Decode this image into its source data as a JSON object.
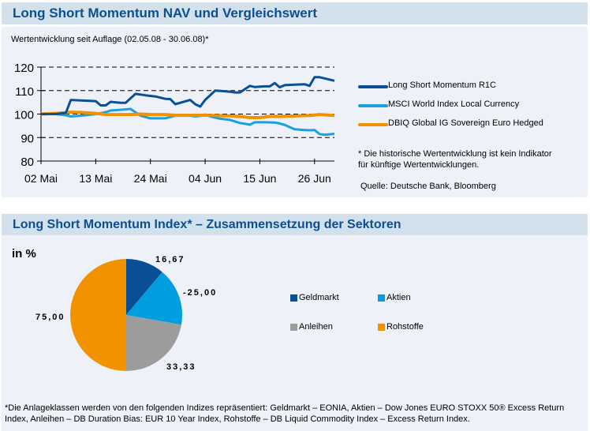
{
  "section1": {
    "title": "Long Short Momentum NAV und Vergleichswert",
    "subtitle": "Wertentwicklung seit Auflage (02.05.08 - 30.06.08)*",
    "note_line1": "* Die historische Wertentwicklung ist kein Indikator",
    "note_line2": "für künftige Wertentwicklungen.",
    "source": "Quelle: Deutsche Bank, Bloomberg"
  },
  "section2": {
    "title": "Long Short Momentum Index* – Zusammensetzung der Sektoren",
    "unit_label": "in %",
    "footnote": "*Die Anlageklassen werden von den folgenden Indizes repräsentiert: Geldmarkt – EONIA, Aktien – Dow Jones EURO STOXX 50® Excess Return Index, Anleihen – DB Duration Bias: EUR 10 Year Index, Rohstoffe – DB Liquid Commodity Index – Excess Return Index."
  },
  "chart_data": [
    {
      "type": "line",
      "title": "Wertentwicklung seit Auflage (02.05.08 - 30.06.08)*",
      "xlabel": "",
      "ylabel": "",
      "ylim": [
        80,
        120
      ],
      "yticks": [
        80,
        90,
        100,
        110,
        120
      ],
      "xlim_days": [
        0,
        59
      ],
      "xtick_labels": [
        "02 Mai",
        "13 Mai",
        "24 Mai",
        "04 Jun",
        "15 Jun",
        "26 Jun"
      ],
      "xtick_days": [
        0,
        11,
        22,
        33,
        44,
        55
      ],
      "grid": "horizontal-dashed",
      "legend": "right",
      "series": [
        {
          "name": "Long Short Momentum R1C",
          "color": "#0b4f96",
          "x_days": [
            0,
            3,
            5,
            6,
            8,
            11,
            12,
            13,
            14,
            16,
            17,
            19,
            21,
            23,
            25,
            26,
            27,
            30,
            31,
            32,
            33,
            35,
            37,
            38,
            39,
            40,
            42,
            43,
            45,
            46,
            47,
            48,
            49,
            51,
            53,
            54,
            55,
            56,
            57,
            59
          ],
          "values": [
            100,
            100,
            100.5,
            106,
            105.8,
            105.5,
            103.7,
            103.7,
            105.2,
            104.8,
            104.8,
            108.6,
            108,
            107.5,
            106.5,
            106.4,
            104.2,
            106,
            104.2,
            103.2,
            106,
            110,
            109.7,
            109.5,
            109.2,
            109.2,
            112,
            111.5,
            111.8,
            111.8,
            113.2,
            111.4,
            112.3,
            112.5,
            112.7,
            112,
            115.7,
            115.7,
            115.2,
            114.2
          ]
        },
        {
          "name": "MSCI World Index Local Currency",
          "color": "#1aa0e0",
          "x_days": [
            0,
            3,
            5,
            6,
            8,
            11,
            13,
            14,
            16,
            18,
            20,
            22,
            23,
            25,
            27,
            30,
            31,
            32,
            33,
            34,
            36,
            38,
            40,
            42,
            43,
            45,
            47,
            48,
            49,
            51,
            53,
            54,
            55,
            56,
            57,
            59
          ],
          "values": [
            100,
            100,
            99.5,
            99,
            99.3,
            100,
            100.8,
            101.5,
            101.8,
            102.2,
            99.3,
            98.2,
            98.2,
            98.2,
            99.3,
            99.3,
            99,
            99.2,
            99.8,
            99,
            98,
            97.5,
            96.2,
            95.5,
            96.5,
            96.5,
            96.4,
            96,
            95.4,
            93.5,
            93.2,
            93.1,
            93.2,
            91.5,
            91.2,
            91.6
          ]
        },
        {
          "name": "DBIQ Global IG Sovereign Euro Hedged",
          "color": "#f39200",
          "x_days": [
            0,
            3,
            6,
            8,
            11,
            13,
            16,
            18,
            20,
            22,
            25,
            27,
            30,
            33,
            35,
            38,
            40,
            42,
            44,
            46,
            48,
            51,
            54,
            56,
            59
          ],
          "values": [
            100,
            100.3,
            100.8,
            100.7,
            100.3,
            99.8,
            99.8,
            99.8,
            100,
            99.8,
            99.8,
            99.5,
            99.5,
            99.5,
            99.4,
            99.2,
            99,
            98.5,
            98.5,
            99,
            99,
            99.2,
            99.4,
            99.8,
            99.4
          ]
        }
      ]
    },
    {
      "type": "pie",
      "title": "Long Short Momentum Index* – Zusammensetzung der Sektoren",
      "unit": "in %",
      "legend": "right",
      "slices": [
        {
          "name": "Geldmarkt",
          "value": 16.67,
          "label": "16,67",
          "color": "#0a4f96"
        },
        {
          "name": "Aktien",
          "value": -25.0,
          "label": "-25,00",
          "color": "#009ee0"
        },
        {
          "name": "Anleihen",
          "value": 33.33,
          "label": "33,33",
          "color": "#9c9c9c"
        },
        {
          "name": "Rohstoffe",
          "value": 75.0,
          "label": "75,00",
          "color": "#f39200"
        }
      ]
    }
  ]
}
